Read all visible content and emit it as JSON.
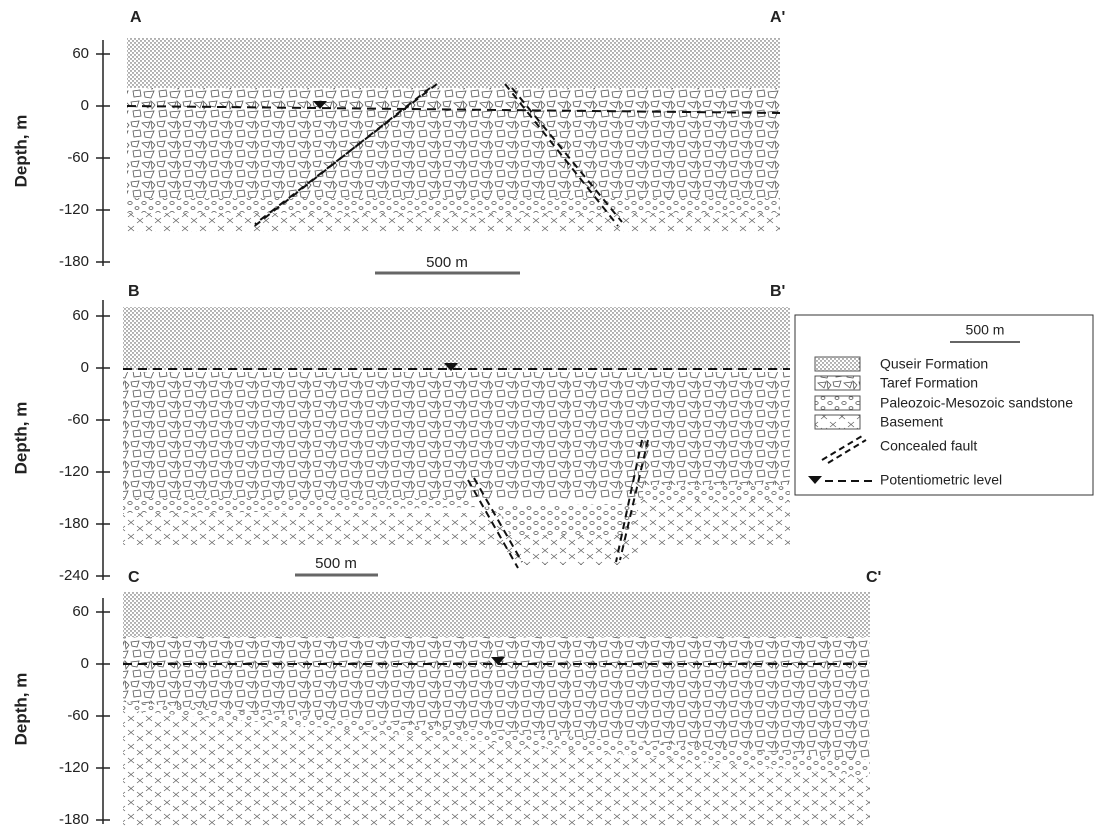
{
  "panels": [
    {
      "label_left": "A",
      "label_right": "A'",
      "y_label": "Depth, m",
      "ylim": [
        -180,
        60
      ],
      "yticks": [
        60,
        0,
        -60,
        -120,
        -180
      ],
      "scale_bar": "500 m"
    },
    {
      "label_left": "B",
      "label_right": "B'",
      "y_label": "Depth, m",
      "ylim": [
        -240,
        60
      ],
      "yticks": [
        60,
        0,
        -60,
        -120,
        -180,
        -240
      ],
      "scale_bar": "500 m"
    },
    {
      "label_left": "C",
      "label_right": "C'",
      "y_label": "Depth, m",
      "ylim": [
        -180,
        60
      ],
      "yticks": [
        60,
        0,
        -60,
        -120,
        -180
      ]
    }
  ],
  "legend": {
    "scale_bar": "500 m",
    "items": [
      "Quseir Formation",
      "Taref Formation",
      "Paleozoic-Mesozoic sandstone",
      "Basement",
      "Concealed fault",
      "Potentiometric level"
    ]
  }
}
